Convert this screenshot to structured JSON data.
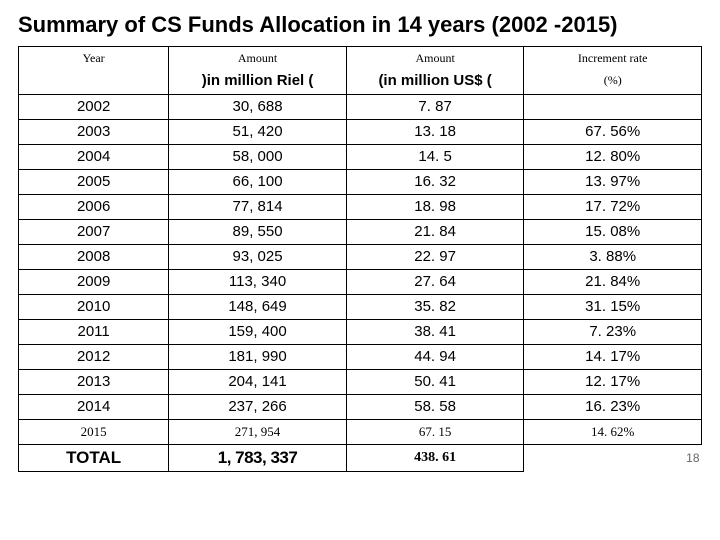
{
  "title": "Summary of CS Funds Allocation in 14 years (2002 -2015)",
  "header": {
    "year": "Year",
    "amount1": "Amount",
    "amount2": "Amount",
    "rate": "Increment rate",
    "sub_riel": ")in million Riel (",
    "sub_usd": "(in million US$ (",
    "sub_pct": "(%)"
  },
  "rows": [
    {
      "year": "2002",
      "riel": "30, 688",
      "usd": "7. 87",
      "rate": ""
    },
    {
      "year": "2003",
      "riel": "51, 420",
      "usd": "13. 18",
      "rate": "67. 56%"
    },
    {
      "year": "2004",
      "riel": "58, 000",
      "usd": "14. 5",
      "rate": "12. 80%"
    },
    {
      "year": "2005",
      "riel": "66, 100",
      "usd": "16. 32",
      "rate": "13. 97%"
    },
    {
      "year": "2006",
      "riel": "77, 814",
      "usd": "18. 98",
      "rate": "17. 72%"
    },
    {
      "year": "2007",
      "riel": "89, 550",
      "usd": "21. 84",
      "rate": "15. 08%"
    },
    {
      "year": "2008",
      "riel": "93, 025",
      "usd": "22. 97",
      "rate": "3. 88%"
    },
    {
      "year": "2009",
      "riel": "113, 340",
      "usd": "27. 64",
      "rate": "21. 84%"
    },
    {
      "year": "2010",
      "riel": "148, 649",
      "usd": "35. 82",
      "rate": "31. 15%"
    },
    {
      "year": "2011",
      "riel": "159, 400",
      "usd": "38. 41",
      "rate": "7. 23%"
    },
    {
      "year": "2012",
      "riel": "181, 990",
      "usd": "44. 94",
      "rate": "14. 17%"
    },
    {
      "year": "2013",
      "riel": "204, 141",
      "usd": "50. 41",
      "rate": "12. 17%"
    },
    {
      "year": "2014",
      "riel": "237, 266",
      "usd": "58. 58",
      "rate": "16. 23%"
    }
  ],
  "row2015": {
    "year": "2015",
    "riel": "271, 954",
    "usd": "67. 15",
    "rate": "14. 62%"
  },
  "total": {
    "year": "TOTAL",
    "riel": "1, 783, 337",
    "usd": "438. 61",
    "rate": "18"
  },
  "pagenum": "18"
}
